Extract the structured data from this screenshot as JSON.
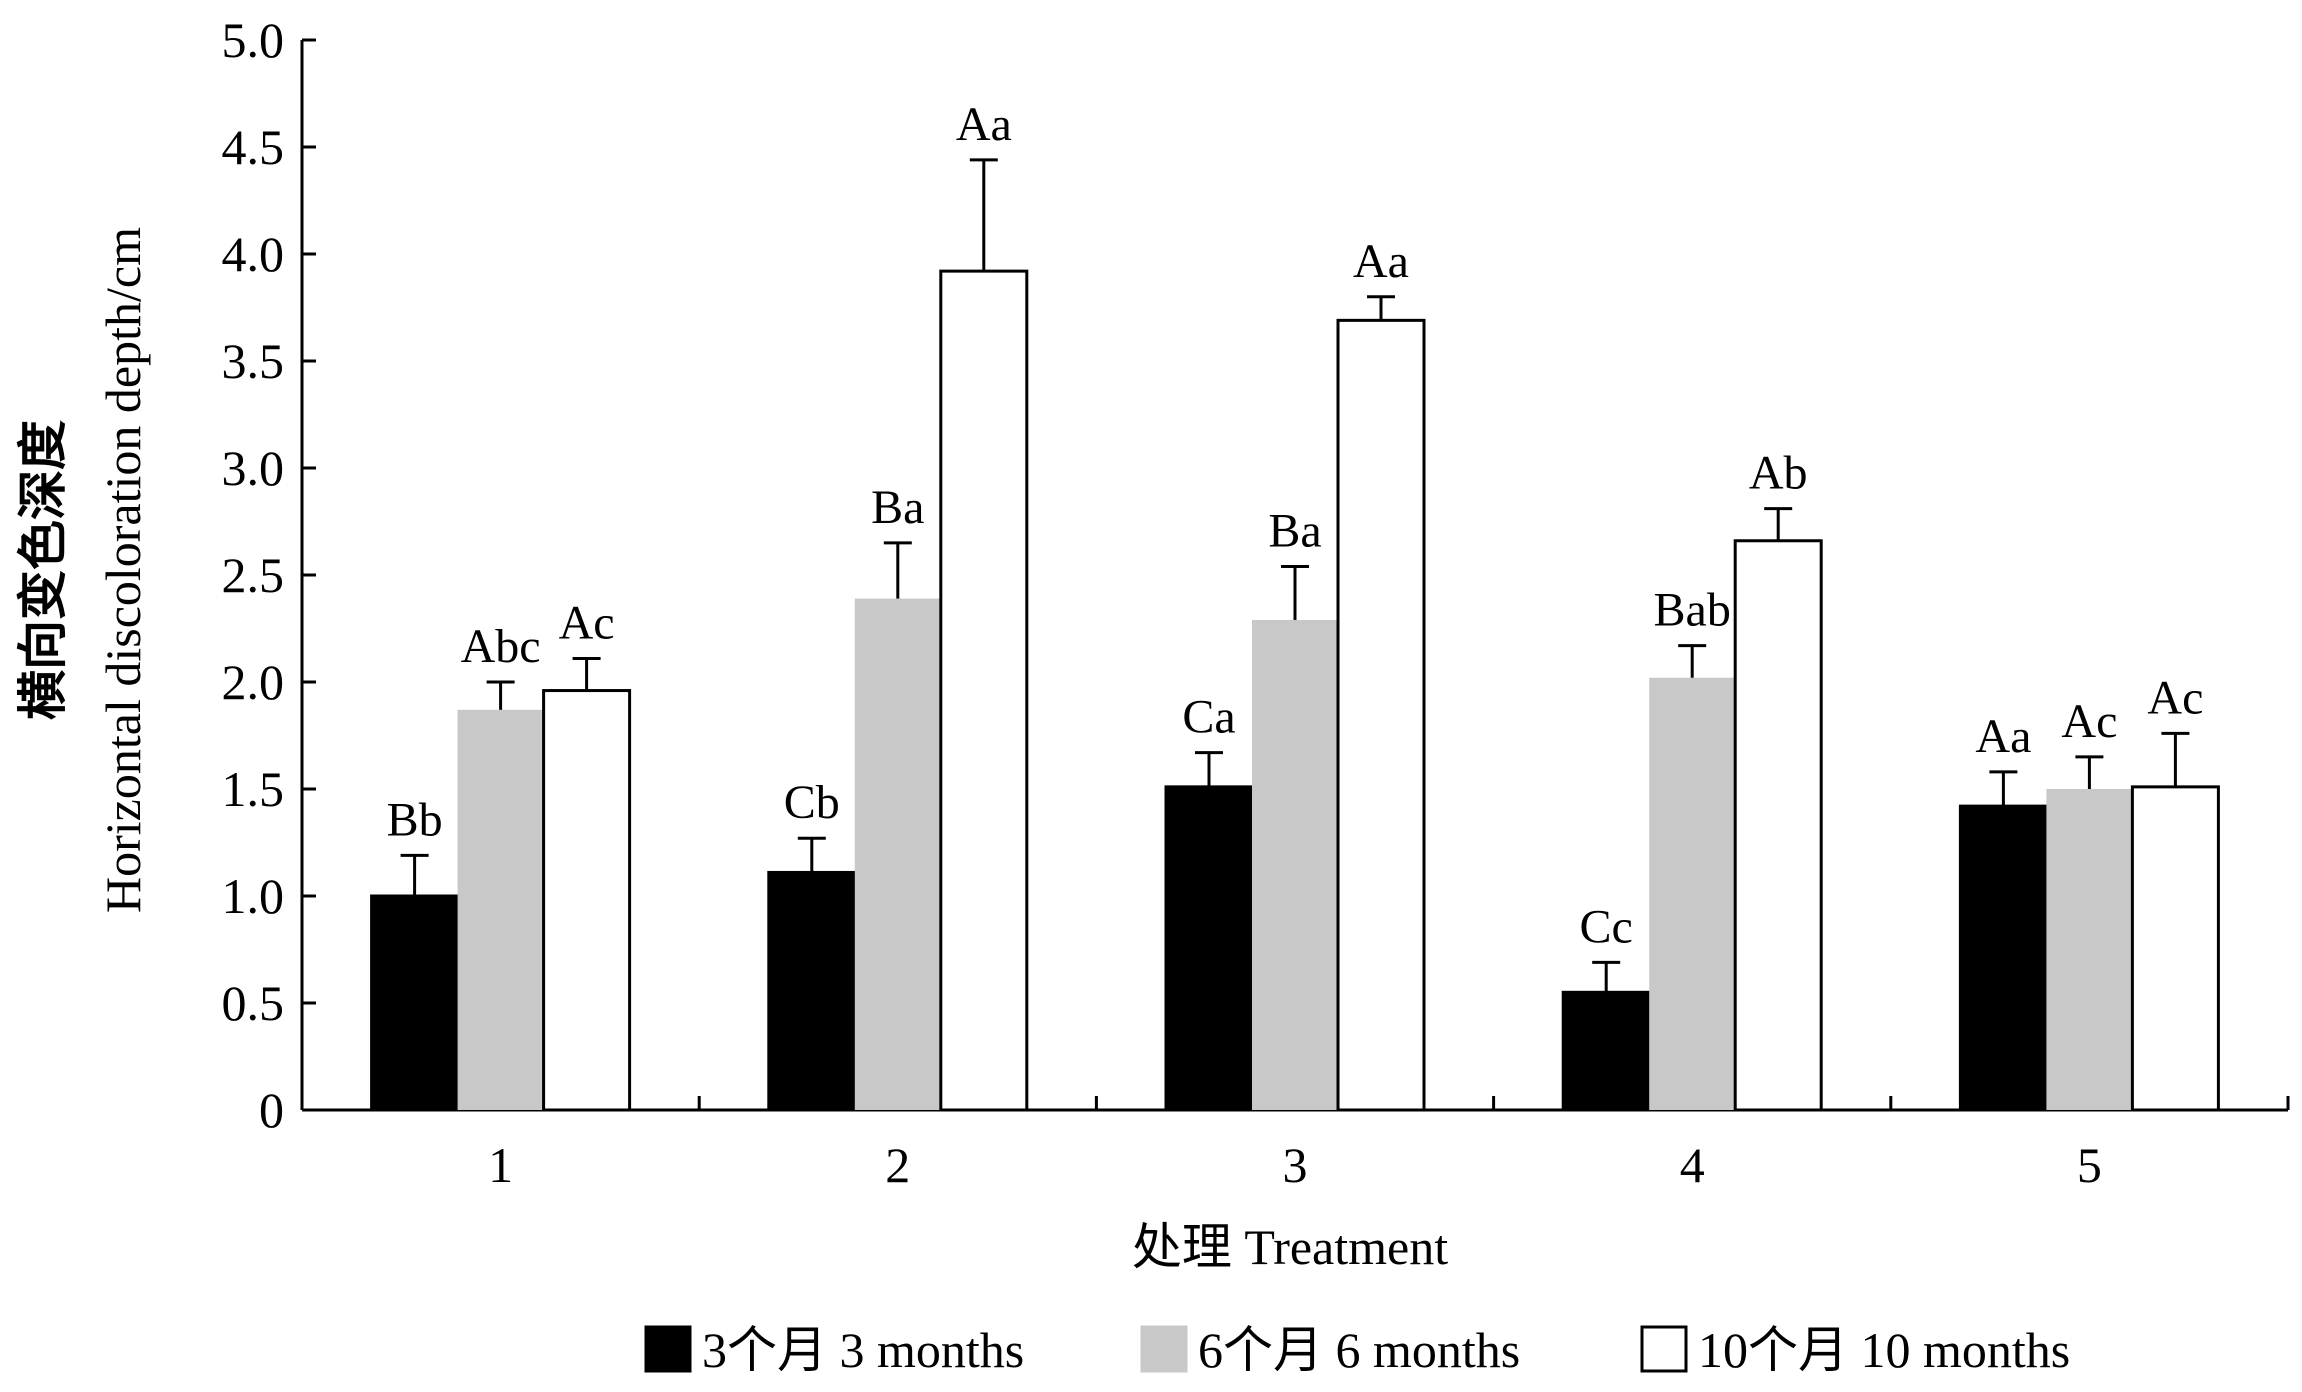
{
  "chart_data": {
    "type": "bar",
    "categories": [
      "1",
      "2",
      "3",
      "4",
      "5"
    ],
    "series": [
      {
        "name": "3个月  3 months",
        "color": "#000000",
        "values": [
          1.0,
          1.11,
          1.51,
          0.55,
          1.42
        ],
        "errors": [
          0.19,
          0.16,
          0.16,
          0.14,
          0.16
        ],
        "labels": [
          "Bb",
          "Cb",
          "Ca",
          "Cc",
          "Aa"
        ]
      },
      {
        "name": "6个月  6 months",
        "color": "#c8c8c8",
        "values": [
          1.87,
          2.39,
          2.29,
          2.02,
          1.5
        ],
        "errors": [
          0.13,
          0.26,
          0.25,
          0.15,
          0.15
        ],
        "labels": [
          "Abc",
          "Ba",
          "Ba",
          "Bab",
          "Ac"
        ]
      },
      {
        "name": "10个月  10 months",
        "color": "#ffffff",
        "values": [
          1.96,
          3.92,
          3.69,
          2.66,
          1.51
        ],
        "errors": [
          0.15,
          0.52,
          0.11,
          0.15,
          0.25
        ],
        "labels": [
          "Ac",
          "Aa",
          "Aa",
          "Ab",
          "Ac"
        ]
      }
    ],
    "title": "",
    "xlabel": "处理  Treatment",
    "ylabel_cn": "横向变色深度",
    "ylabel_en": "Horizontal discoloration depth/cm",
    "ylim": [
      0,
      5.0
    ],
    "yticks": [
      "0",
      "0.5",
      "1.0",
      "1.5",
      "2.0",
      "2.5",
      "3.0",
      "3.5",
      "4.0",
      "4.5",
      "5.0"
    ],
    "grid": false,
    "legend_position": "bottom"
  }
}
